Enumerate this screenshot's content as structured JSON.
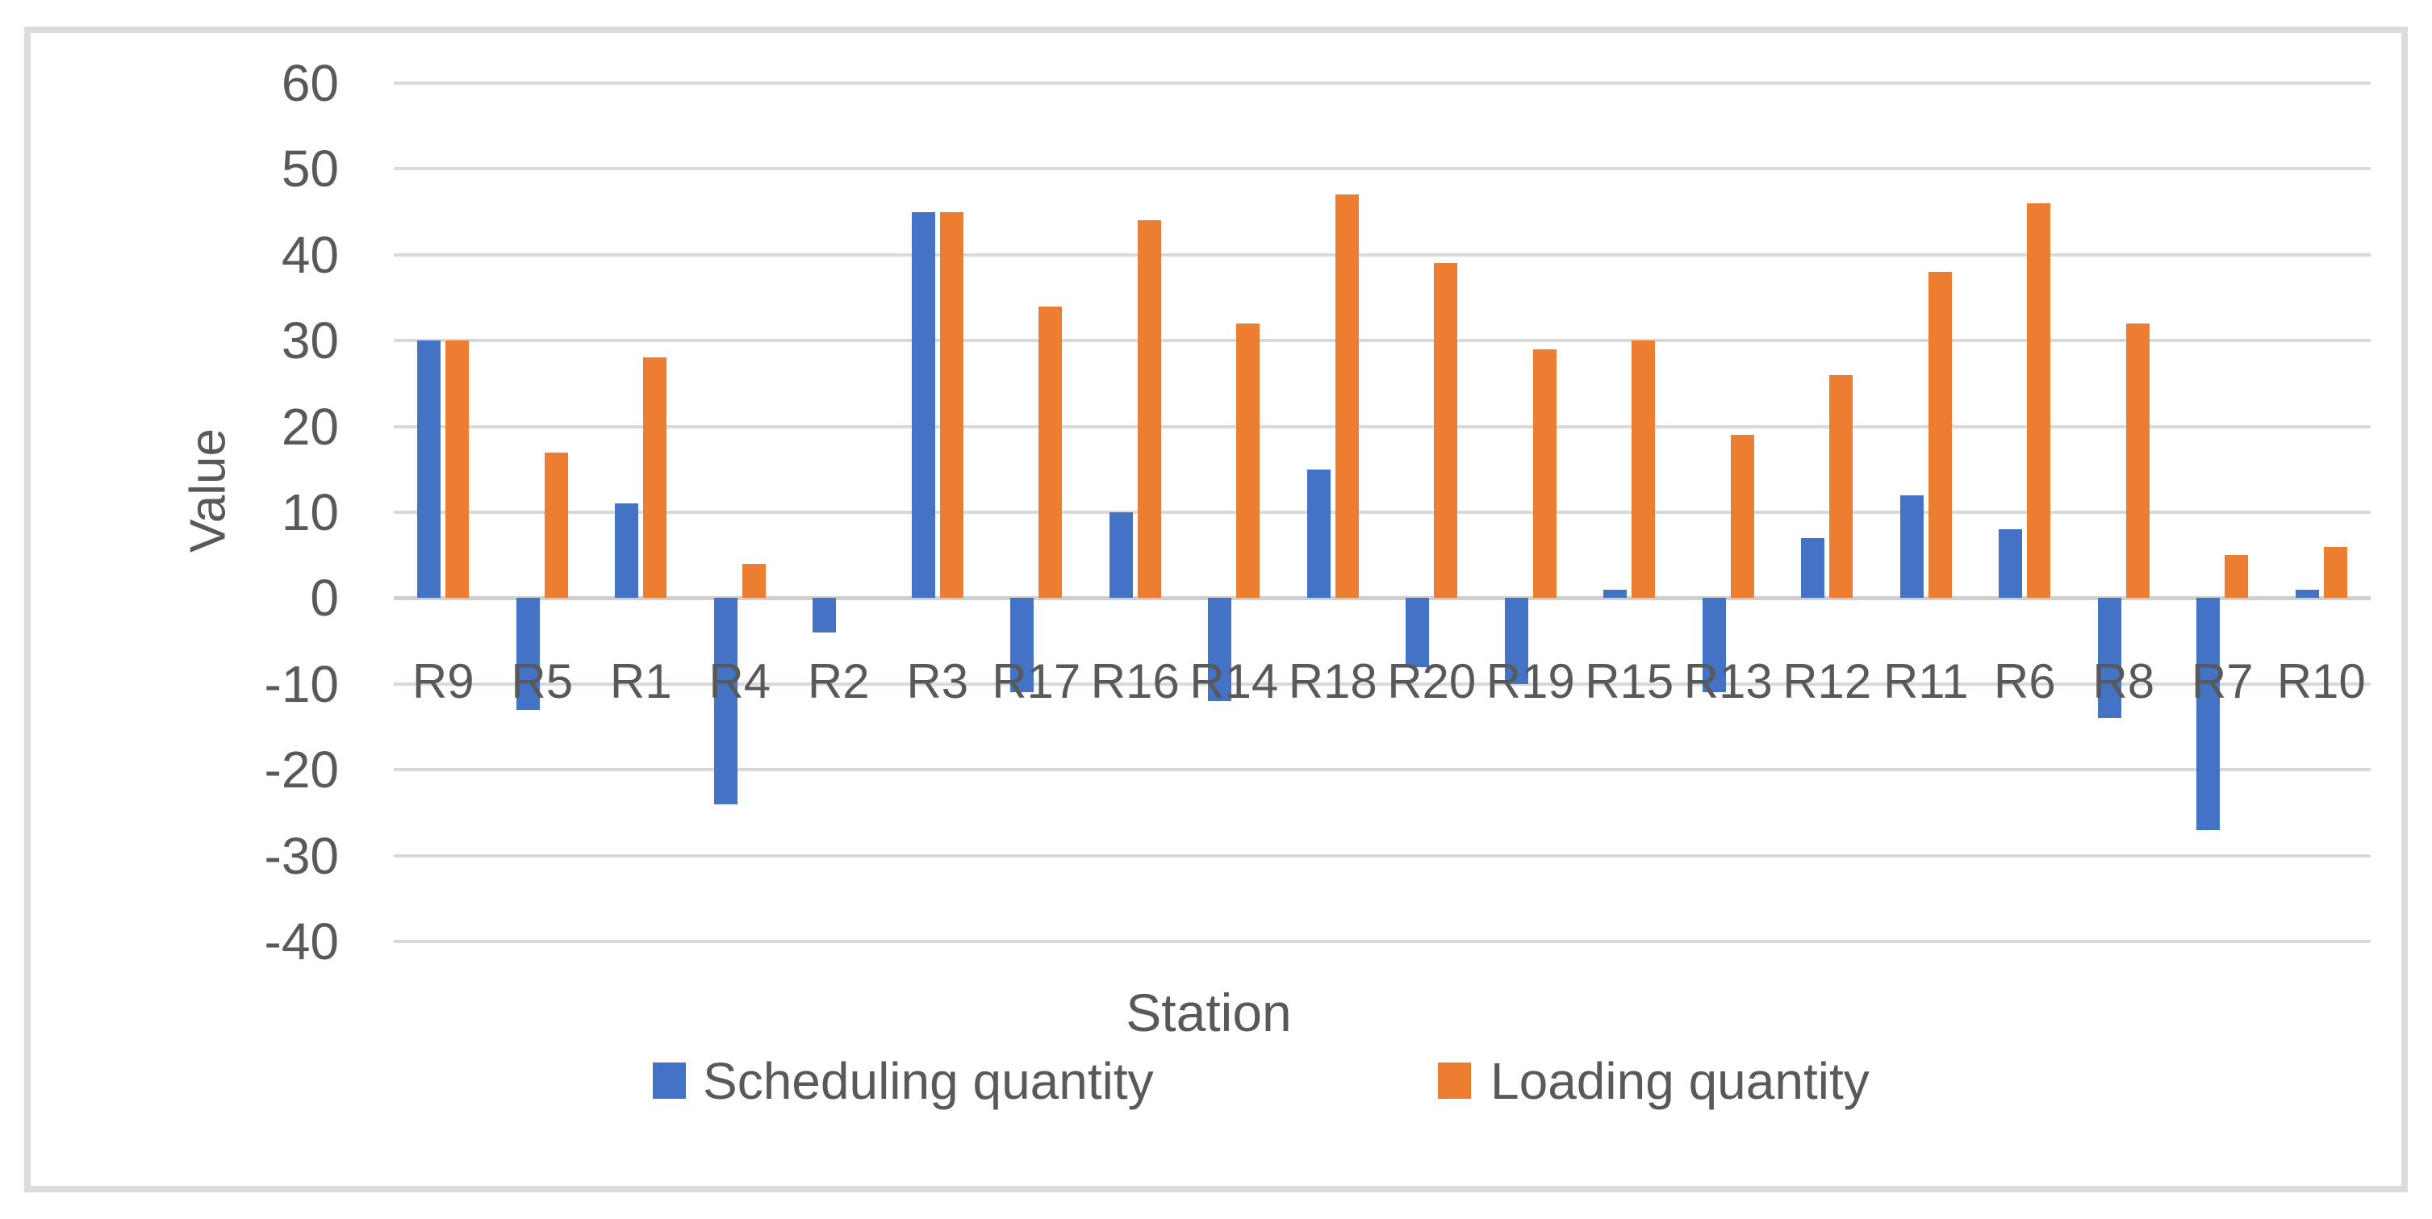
{
  "figure": {
    "y_axis_title": "Value",
    "x_axis_title": "Station",
    "background_color": "#FFFFFF",
    "border_color": "#DCDCDC",
    "gridline_color": "#D9D9D9",
    "zero_line_color": "#CFCFCF",
    "text_color": "#595959"
  },
  "legend": {
    "position": "bottom",
    "items": [
      {
        "label": "Scheduling quantity",
        "color": "#4472C4",
        "swatch": "column-swatch"
      },
      {
        "label": "Loading quantity",
        "color": "#ED7D31",
        "swatch": "column-swatch"
      }
    ]
  },
  "chart_data": {
    "type": "bar",
    "title": "",
    "xlabel": "Station",
    "ylabel": "Value",
    "grid": true,
    "legend_position": "bottom",
    "ylim": [
      -40,
      60
    ],
    "ytick_step": 10,
    "yticks": [
      60,
      50,
      40,
      30,
      20,
      10,
      0,
      -10,
      -20,
      -30,
      -40
    ],
    "categories": [
      "R9",
      "R5",
      "R1",
      "R4",
      "R2",
      "R3",
      "R17",
      "R16",
      "R14",
      "R18",
      "R20",
      "R19",
      "R15",
      "R13",
      "R12",
      "R11",
      "R6",
      "R8",
      "R7",
      "R10"
    ],
    "series": [
      {
        "name": "Scheduling quantity",
        "color": "#4472C4",
        "values": [
          30,
          -13,
          11,
          -24,
          -4,
          45,
          -11,
          10,
          -12,
          15,
          -8,
          -10,
          1,
          -11,
          7,
          12,
          8,
          -14,
          -27,
          1
        ]
      },
      {
        "name": "Loading quantity",
        "color": "#ED7D31",
        "values": [
          30,
          17,
          28,
          4,
          0,
          45,
          34,
          44,
          32,
          47,
          39,
          29,
          30,
          19,
          26,
          38,
          46,
          32,
          5,
          6
        ]
      }
    ]
  }
}
